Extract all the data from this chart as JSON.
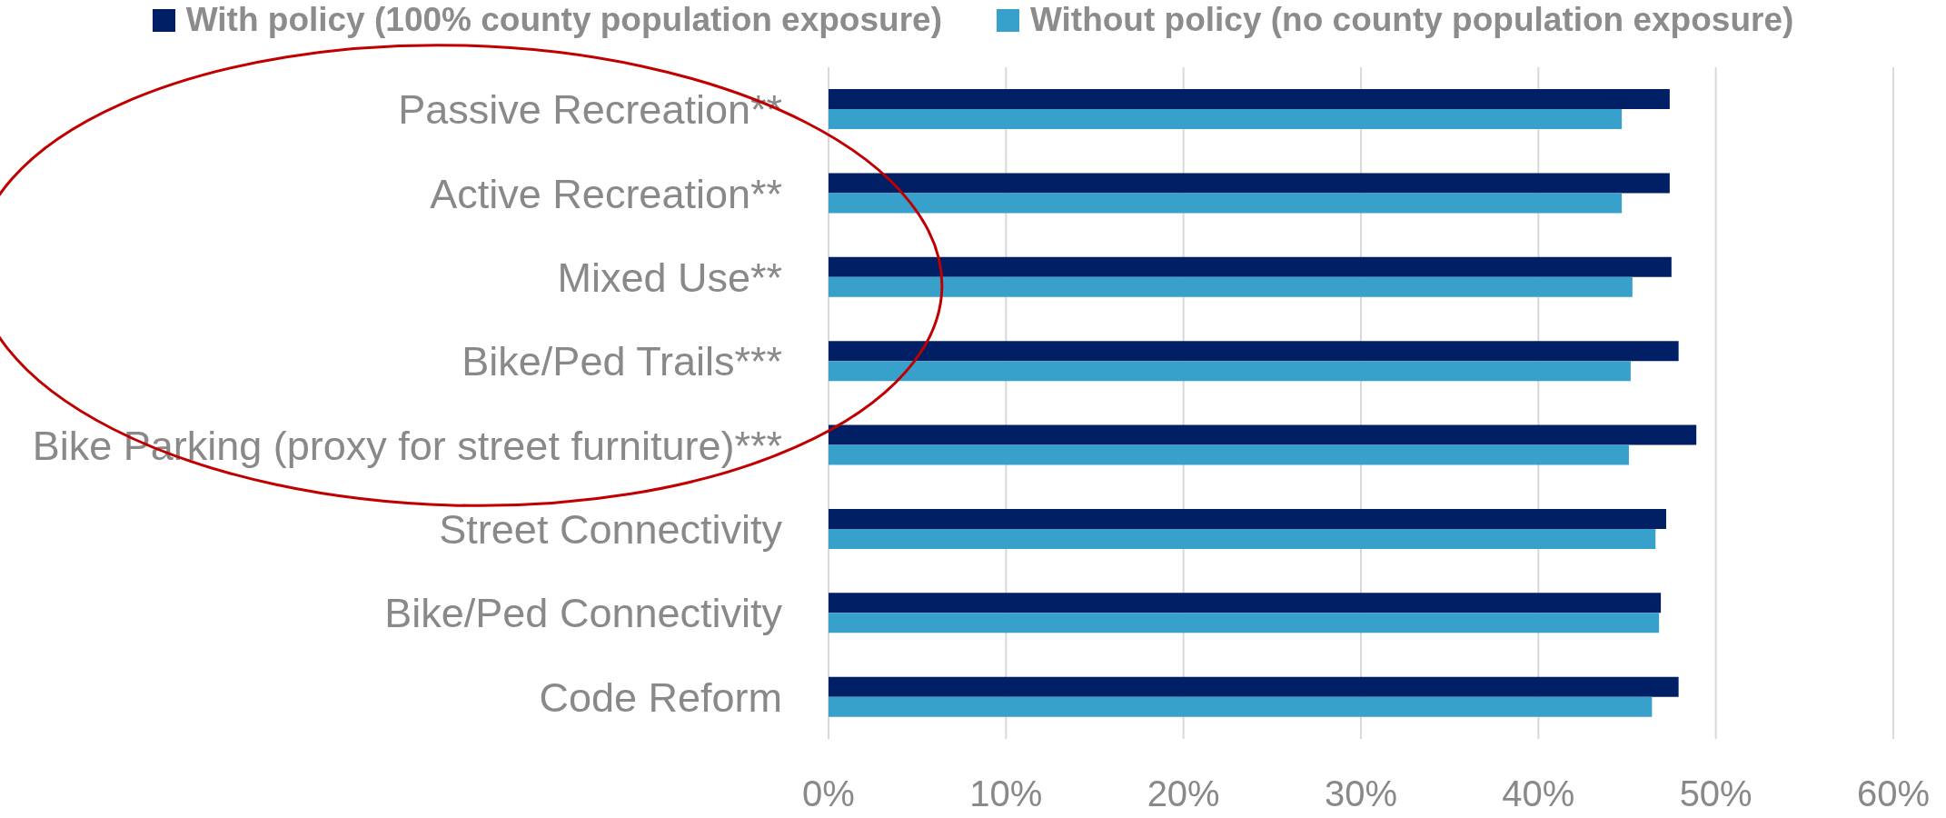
{
  "chart_data": {
    "type": "bar",
    "orientation": "horizontal",
    "categories": [
      "Passive Recreation**",
      "Active Recreation**",
      "Mixed Use**",
      "Bike/Ped Trails***",
      "Bike Parking (proxy for street furniture)***",
      "Street Connectivity",
      "Bike/Ped Connectivity",
      "Code Reform"
    ],
    "series": [
      {
        "name": "With policy (100% county population exposure)",
        "color": "#001f64",
        "values": [
          47.4,
          47.4,
          47.5,
          47.9,
          48.9,
          47.2,
          46.9,
          47.9
        ]
      },
      {
        "name": "Without policy (no county population exposure)",
        "color": "#38a1cb",
        "values": [
          44.7,
          44.7,
          45.3,
          45.2,
          45.1,
          46.6,
          46.8,
          46.4
        ]
      }
    ],
    "xlim": [
      0,
      60
    ],
    "xticks": [
      {
        "value": 0,
        "label": "0%"
      },
      {
        "value": 10,
        "label": "10%"
      },
      {
        "value": 20,
        "label": "20%"
      },
      {
        "value": 30,
        "label": "30%"
      },
      {
        "value": 40,
        "label": "40%"
      },
      {
        "value": 50,
        "label": "50%"
      },
      {
        "value": 60,
        "label": "60%"
      }
    ],
    "grid": "x",
    "legend": "top"
  }
}
